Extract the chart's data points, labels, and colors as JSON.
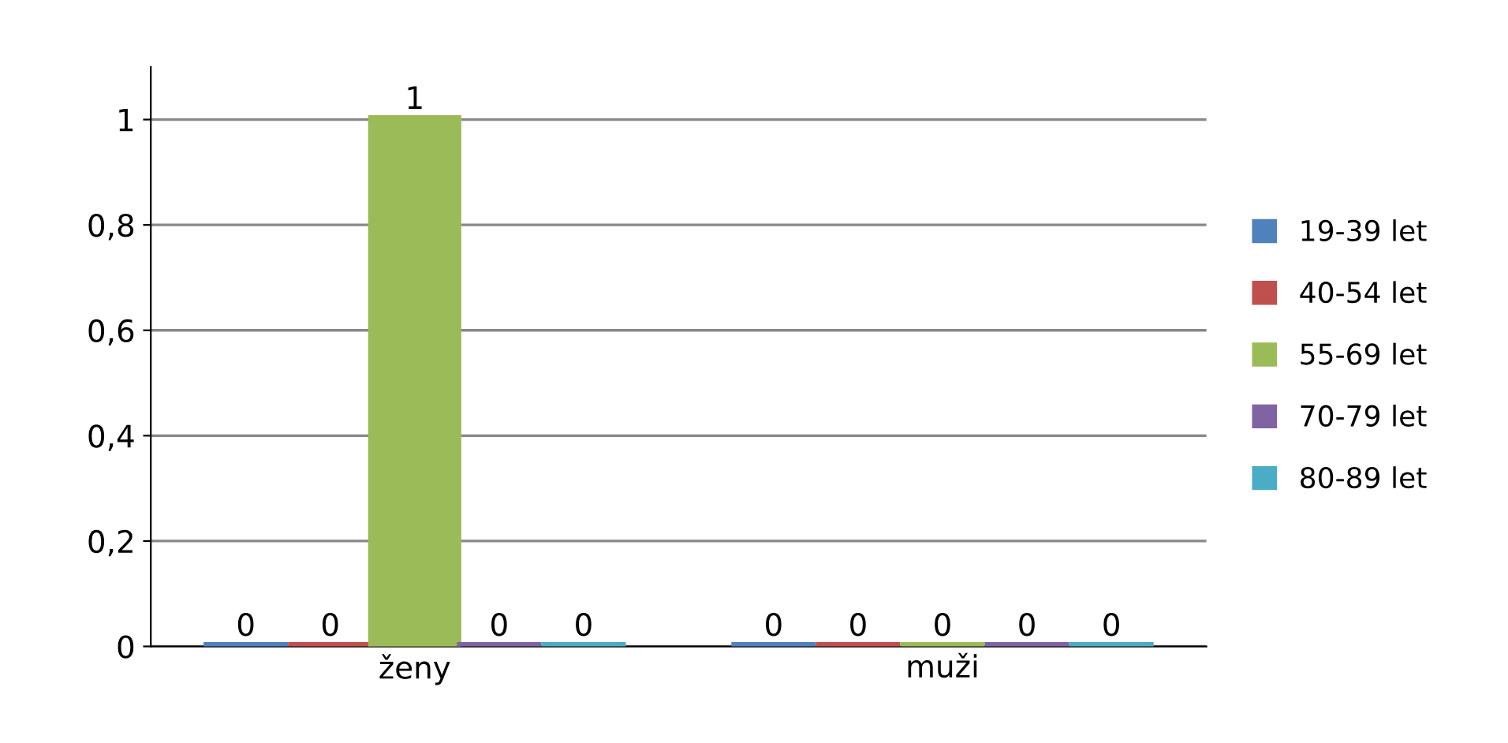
{
  "chart_data": {
    "type": "bar",
    "categories": [
      "ženy",
      "muži"
    ],
    "series": [
      {
        "name": "19-39 let",
        "color": "#4f81bd",
        "values": [
          0,
          0
        ]
      },
      {
        "name": "40-54 let",
        "color": "#c0504d",
        "values": [
          0,
          0
        ]
      },
      {
        "name": "55-69 let",
        "color": "#9bbb59",
        "values": [
          1,
          0
        ]
      },
      {
        "name": "70-79 let",
        "color": "#8064a2",
        "values": [
          0,
          0
        ]
      },
      {
        "name": "80-89 let",
        "color": "#4bacc6",
        "values": [
          0,
          0
        ]
      }
    ],
    "ylim": [
      0,
      1.1
    ],
    "yticks": [
      0,
      {
        "value": 0.2,
        "label": "0,2"
      },
      {
        "value": 0.4,
        "label": "0,4"
      },
      {
        "value": 0.6,
        "label": "0,6"
      },
      {
        "value": 0.8,
        "label": "0,8"
      },
      1
    ],
    "grid": "y",
    "legend": "right",
    "data_labels": true
  }
}
